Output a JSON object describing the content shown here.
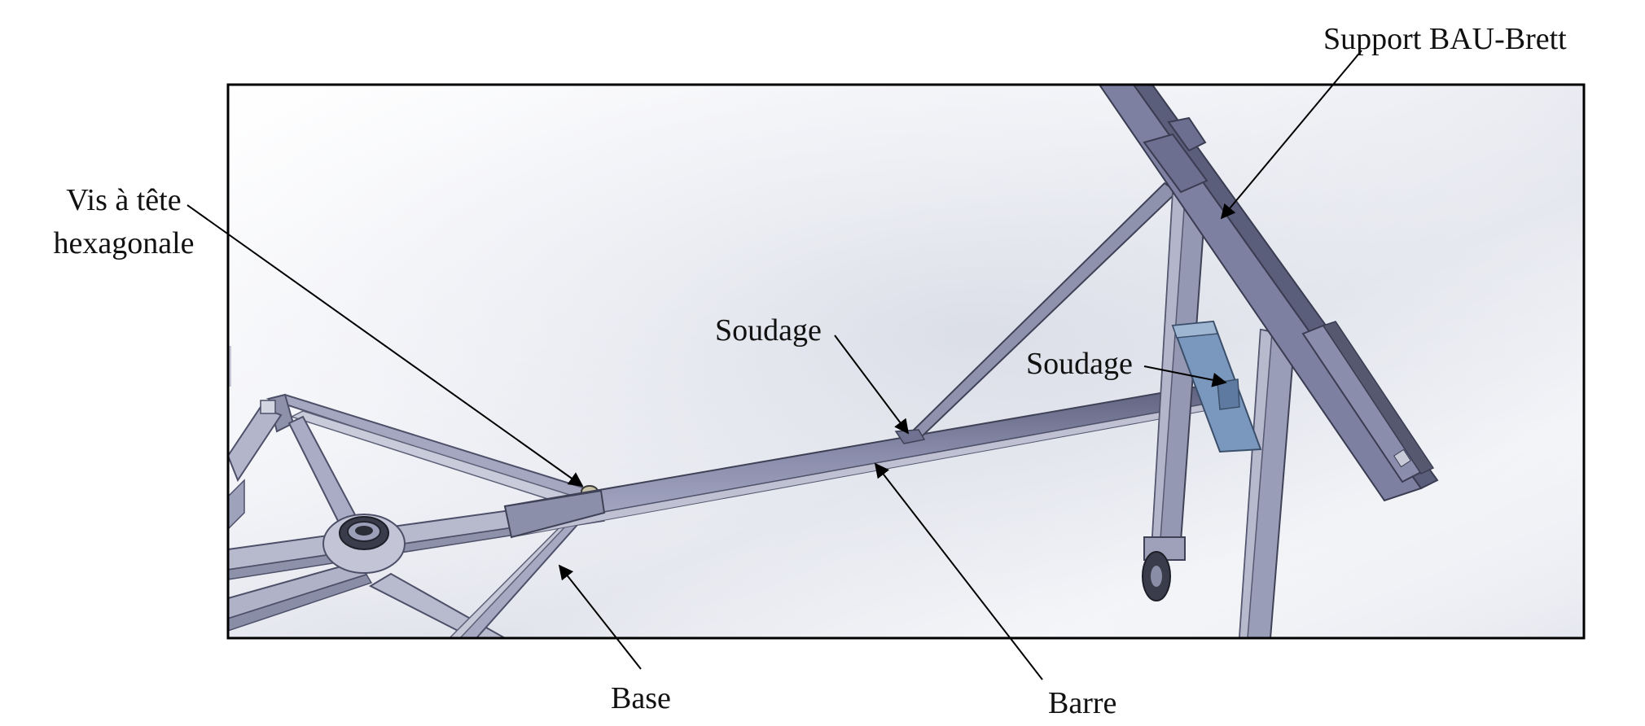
{
  "labels": {
    "support": "Support BAU-Brett",
    "vis_line1": "Vis à tête",
    "vis_line2": "hexagonale",
    "soudage_left": "Soudage",
    "soudage_right": "Soudage",
    "base": "Base",
    "barre": "Barre"
  },
  "colors": {
    "frame_border": "#000000",
    "metal_light": "#a5a8c2",
    "metal_mid": "#7f82a3",
    "metal_dark": "#55586f",
    "weld_plate": "#6f8fb4",
    "background_grey": "#d9dce6"
  }
}
